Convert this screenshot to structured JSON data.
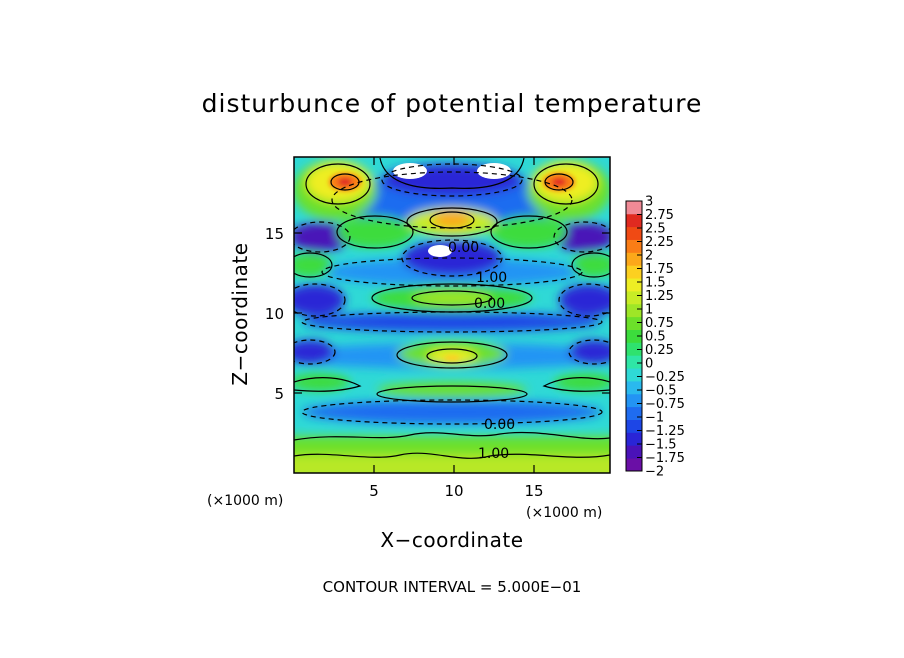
{
  "chart_data": {
    "type": "heatmap",
    "title": "disturbunce of potential temperature",
    "xlabel": "X−coordinate",
    "ylabel": "Z−coordinate",
    "x_unit": "(×1000 m)",
    "z_unit": "(×1000 m)",
    "xlim": [
      0,
      19.75
    ],
    "ylim": [
      0,
      19.75
    ],
    "x_ticks": [
      5,
      10,
      15
    ],
    "y_ticks": [
      5,
      10,
      15
    ],
    "colorbar": {
      "range": [
        -2,
        3
      ],
      "levels": [
        -2,
        -1.75,
        -1.5,
        -1.25,
        -1,
        -0.75,
        -0.5,
        -0.25,
        0,
        0.25,
        0.5,
        0.75,
        1,
        1.25,
        1.5,
        1.75,
        2,
        2.25,
        2.5,
        2.75,
        3
      ],
      "labels": [
        "3",
        "2.75",
        "2.5",
        "2.25",
        "2",
        "1.75",
        "1.5",
        "1.25",
        "1",
        "0.75",
        "0.5",
        "0.25",
        "0",
        "−0.25",
        "−0.5",
        "−0.75",
        "−1",
        "−1.25",
        "−1.5",
        "−1.75",
        "−2"
      ],
      "colors": [
        "#6a0fa6",
        "#4a12b8",
        "#2a25d6",
        "#1d46e6",
        "#1f6cf0",
        "#2394f4",
        "#2ab9ee",
        "#2fd9d6",
        "#2fe6a6",
        "#2fe26e",
        "#3cdc3c",
        "#6ce02a",
        "#9ee627",
        "#c8ec26",
        "#eeee24",
        "#fcd020",
        "#fca81a",
        "#fa7d16",
        "#f04a14",
        "#e02a20",
        "#f08a96"
      ]
    },
    "contour_labels": [
      "0.00",
      "1.00",
      "0.00",
      "0.00",
      "1.00"
    ],
    "contour_interval_text": "CONTOUR INTERVAL = 5.000E−01",
    "grid": false
  }
}
